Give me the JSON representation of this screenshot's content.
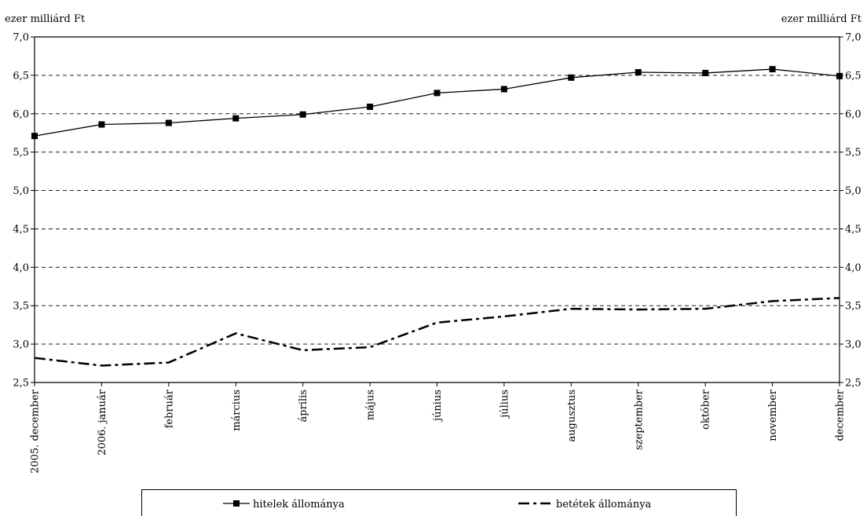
{
  "chart_data": {
    "type": "line",
    "y_unit_left": "ezer milliárd Ft",
    "y_unit_right": "ezer milliárd Ft",
    "categories": [
      "2005. december",
      "2006. január",
      "február",
      "március",
      "április",
      "május",
      "június",
      "július",
      "augusztus",
      "szeptember",
      "október",
      "november",
      "december"
    ],
    "ylim": [
      2.5,
      7.0
    ],
    "yticks": [
      "2,5",
      "3,0",
      "3,5",
      "4,0",
      "4,5",
      "5,0",
      "5,5",
      "6,0",
      "6,5",
      "7,0"
    ],
    "ytick_values": [
      2.5,
      3.0,
      3.5,
      4.0,
      4.5,
      5.0,
      5.5,
      6.0,
      6.5,
      7.0
    ],
    "grid": "horizontal dashed",
    "legend_position": "bottom",
    "series": [
      {
        "name": "hitelek állománya",
        "style": "solid line with square markers",
        "color": "#000000",
        "values": [
          5.71,
          5.86,
          5.88,
          5.94,
          5.99,
          6.09,
          6.27,
          6.32,
          6.47,
          6.54,
          6.53,
          6.58,
          6.49
        ]
      },
      {
        "name": "betétek állománya",
        "style": "dash-dot line",
        "color": "#000000",
        "values": [
          2.82,
          2.72,
          2.76,
          3.14,
          2.92,
          2.96,
          3.28,
          3.36,
          3.46,
          3.45,
          3.46,
          3.56,
          3.6
        ]
      }
    ]
  }
}
